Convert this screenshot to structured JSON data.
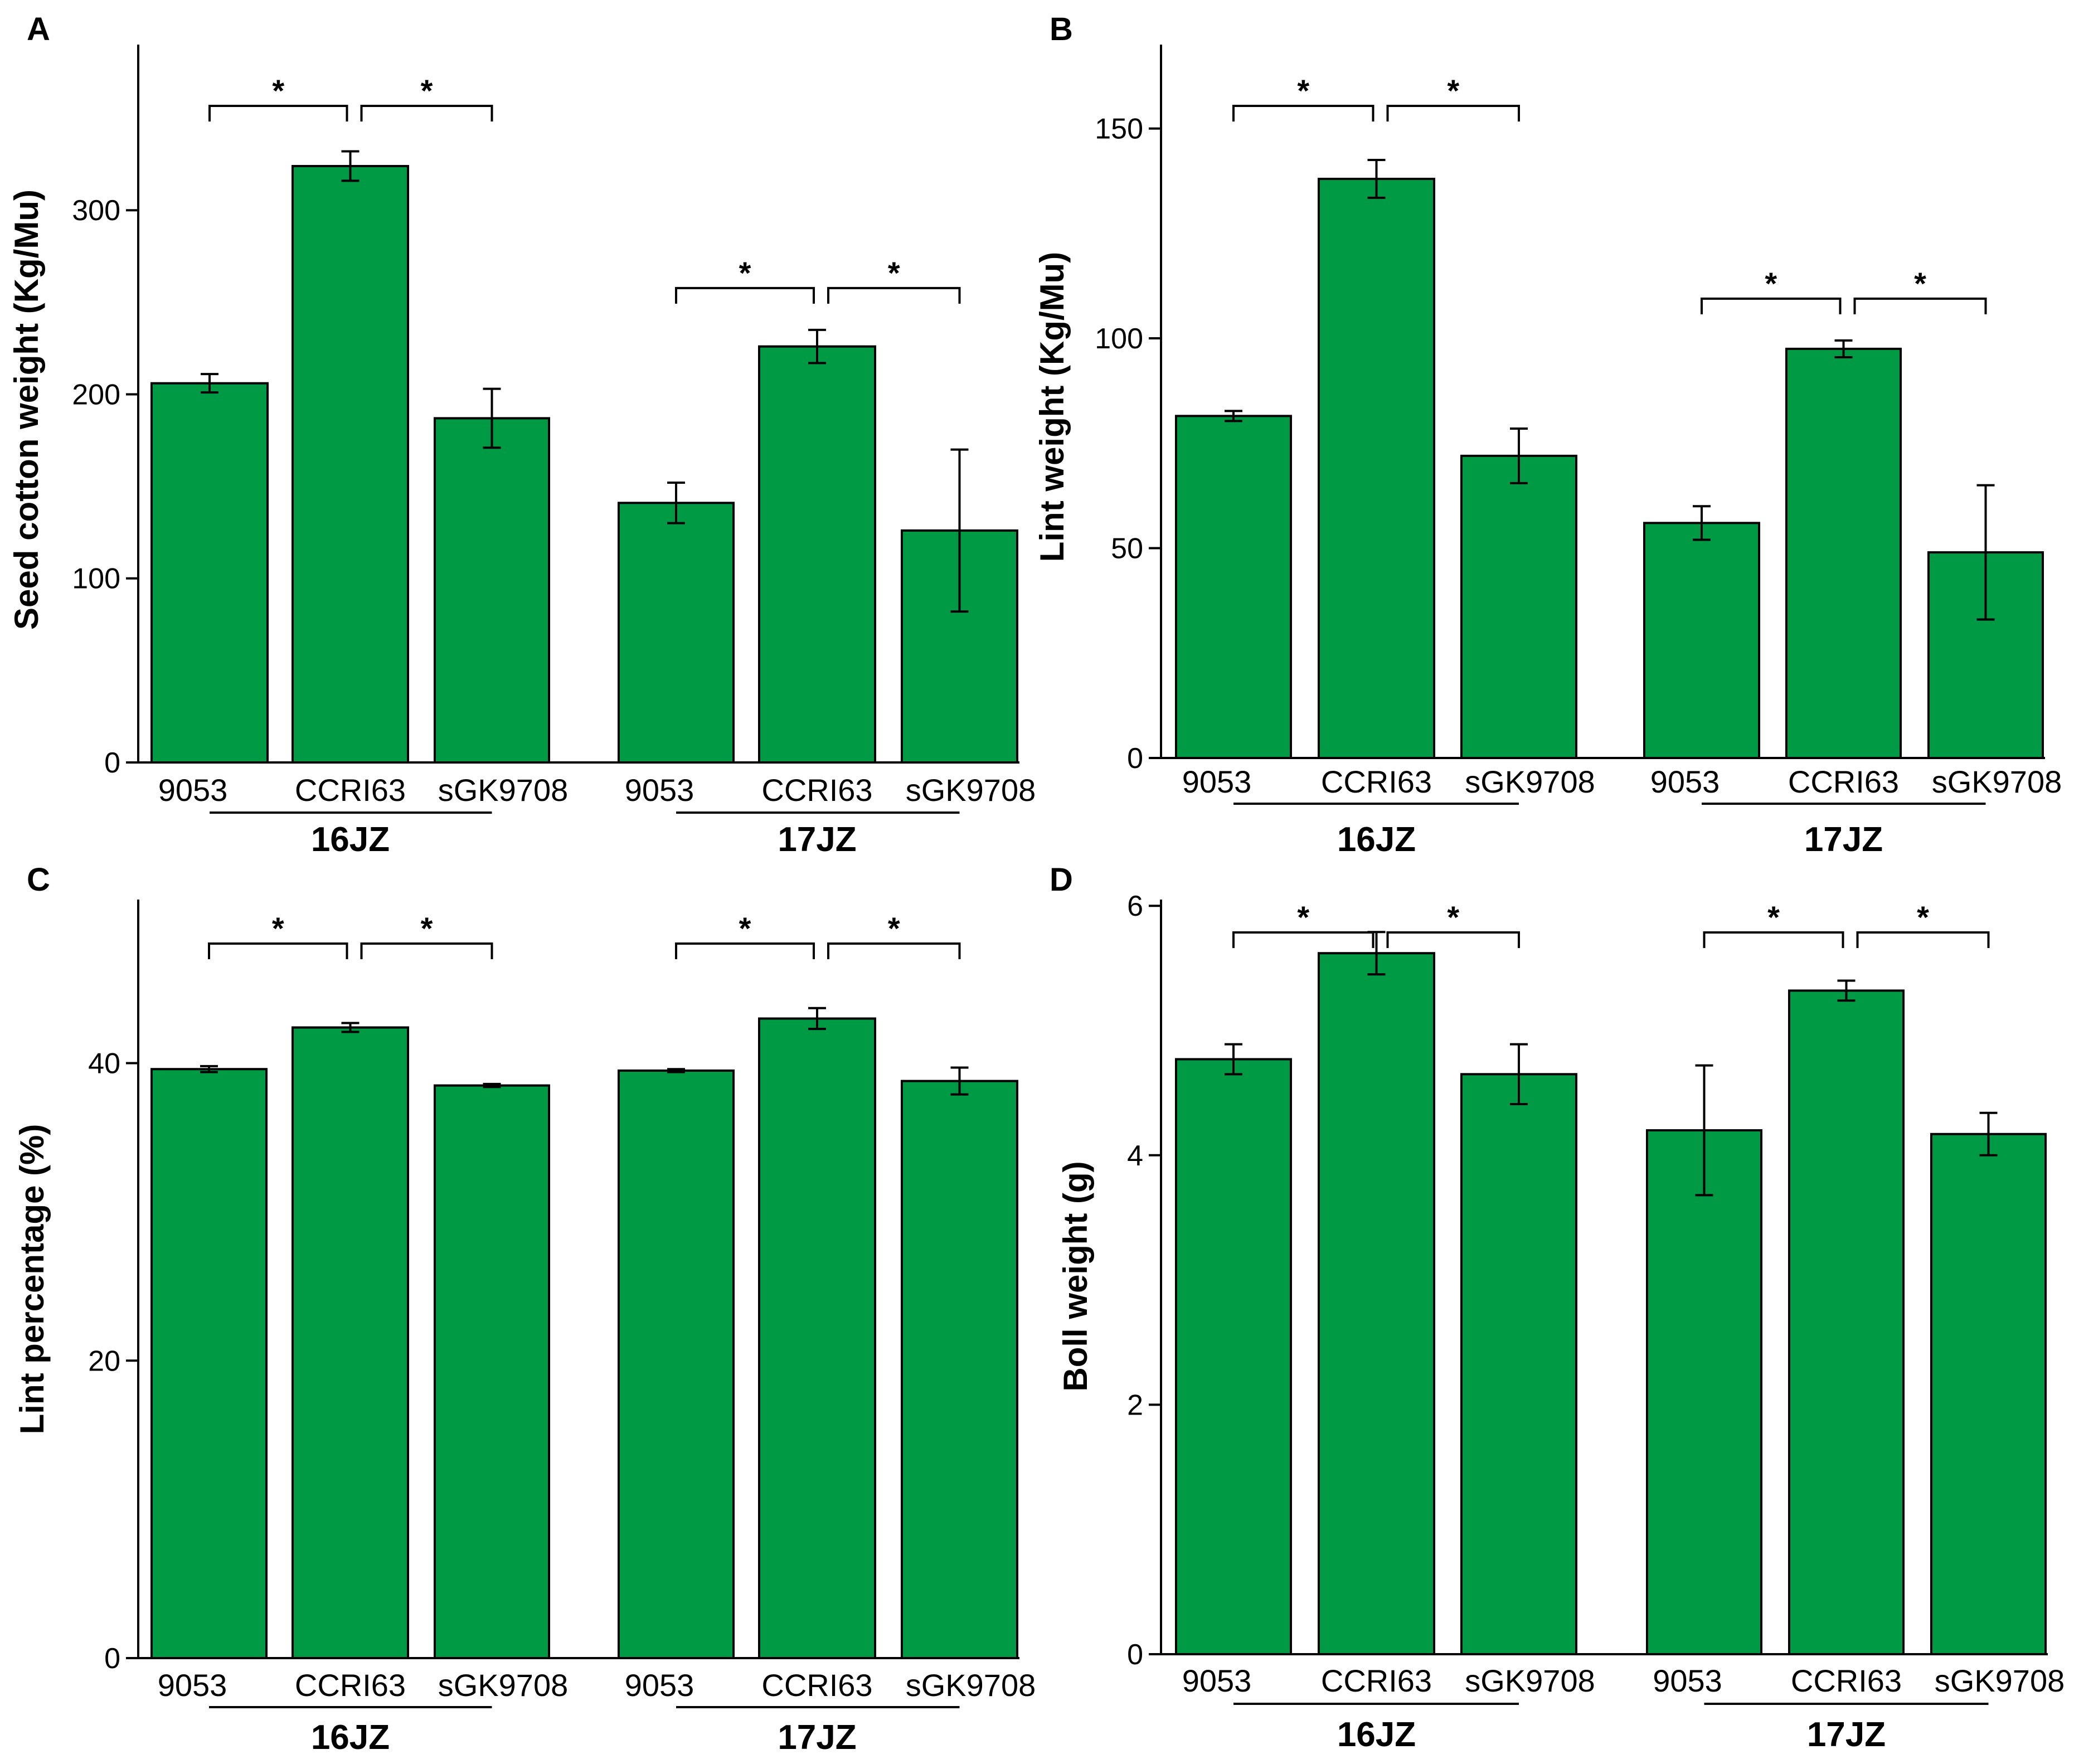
{
  "chart_data": [
    {
      "type": "bar",
      "panel": "A",
      "ylabel": "Seed cotton weight (Kg/Mu)",
      "ylim": [
        0,
        390
      ],
      "yticks": [
        0,
        100,
        200,
        300
      ],
      "groups": [
        {
          "name": "16JZ",
          "categories": [
            "9053",
            "CCRI63",
            "sGK9708"
          ],
          "values": [
            206,
            324,
            187
          ],
          "errors": [
            5,
            8,
            16
          ],
          "significance": [
            {
              "from": 0,
              "to": 1,
              "label": "*"
            },
            {
              "from": 1,
              "to": 2,
              "label": "*"
            }
          ]
        },
        {
          "name": "17JZ",
          "categories": [
            "9053",
            "CCRI63",
            "sGK9708"
          ],
          "values": [
            141,
            226,
            126
          ],
          "errors": [
            11,
            9,
            44
          ],
          "significance": [
            {
              "from": 0,
              "to": 1,
              "label": "*"
            },
            {
              "from": 1,
              "to": 2,
              "label": "*"
            }
          ]
        }
      ]
    },
    {
      "type": "bar",
      "panel": "B",
      "ylabel": "Lint weight (Kg/Mu)",
      "ylim": [
        0,
        170
      ],
      "yticks": [
        0,
        50,
        100,
        150
      ],
      "groups": [
        {
          "name": "16JZ",
          "categories": [
            "9053",
            "CCRI63",
            "sGK9708"
          ],
          "values": [
            81.5,
            138,
            72
          ],
          "errors": [
            1.2,
            4.5,
            6.5
          ],
          "significance": [
            {
              "from": 0,
              "to": 1,
              "label": "*"
            },
            {
              "from": 1,
              "to": 2,
              "label": "*"
            }
          ]
        },
        {
          "name": "17JZ",
          "categories": [
            "9053",
            "CCRI63",
            "sGK9708"
          ],
          "values": [
            56,
            97.5,
            49
          ],
          "errors": [
            4,
            2,
            16
          ],
          "significance": [
            {
              "from": 0,
              "to": 1,
              "label": "*"
            },
            {
              "from": 1,
              "to": 2,
              "label": "*"
            }
          ]
        }
      ]
    },
    {
      "type": "bar",
      "panel": "C",
      "ylabel": "Lint percentage (%)",
      "ylim": [
        0,
        51
      ],
      "yticks": [
        0,
        20,
        40
      ],
      "groups": [
        {
          "name": "16JZ",
          "categories": [
            "9053",
            "CCRI63",
            "sGK9708"
          ],
          "values": [
            39.6,
            42.4,
            38.5
          ],
          "errors": [
            0.2,
            0.3,
            0.1
          ],
          "significance": [
            {
              "from": 0,
              "to": 1,
              "label": "*"
            },
            {
              "from": 1,
              "to": 2,
              "label": "*"
            }
          ]
        },
        {
          "name": "17JZ",
          "categories": [
            "9053",
            "CCRI63",
            "sGK9708"
          ],
          "values": [
            39.5,
            43.0,
            38.8
          ],
          "errors": [
            0.1,
            0.7,
            0.9
          ],
          "significance": [
            {
              "from": 0,
              "to": 1,
              "label": "*"
            },
            {
              "from": 1,
              "to": 2,
              "label": "*"
            }
          ]
        }
      ]
    },
    {
      "type": "bar",
      "panel": "D",
      "ylabel": "Boll weight (g)",
      "ylim": [
        0,
        6.05
      ],
      "yticks": [
        0,
        2,
        4,
        6
      ],
      "groups": [
        {
          "name": "16JZ",
          "categories": [
            "9053",
            "CCRI63",
            "sGK9708"
          ],
          "values": [
            4.77,
            5.62,
            4.65
          ],
          "errors": [
            0.12,
            0.17,
            0.24
          ],
          "significance": [
            {
              "from": 0,
              "to": 1,
              "label": "*"
            },
            {
              "from": 1,
              "to": 2,
              "label": "*"
            }
          ]
        },
        {
          "name": "17JZ",
          "categories": [
            "9053",
            "CCRI63",
            "sGK9708"
          ],
          "values": [
            4.2,
            5.32,
            4.17
          ],
          "errors": [
            0.52,
            0.08,
            0.17
          ],
          "significance": [
            {
              "from": 0,
              "to": 1,
              "label": "*"
            },
            {
              "from": 1,
              "to": 2,
              "label": "*"
            }
          ]
        }
      ]
    }
  ],
  "colors": {
    "bar_fill": "#009A44",
    "bar_stroke": "#000000",
    "axis": "#000000",
    "text": "#000000"
  }
}
